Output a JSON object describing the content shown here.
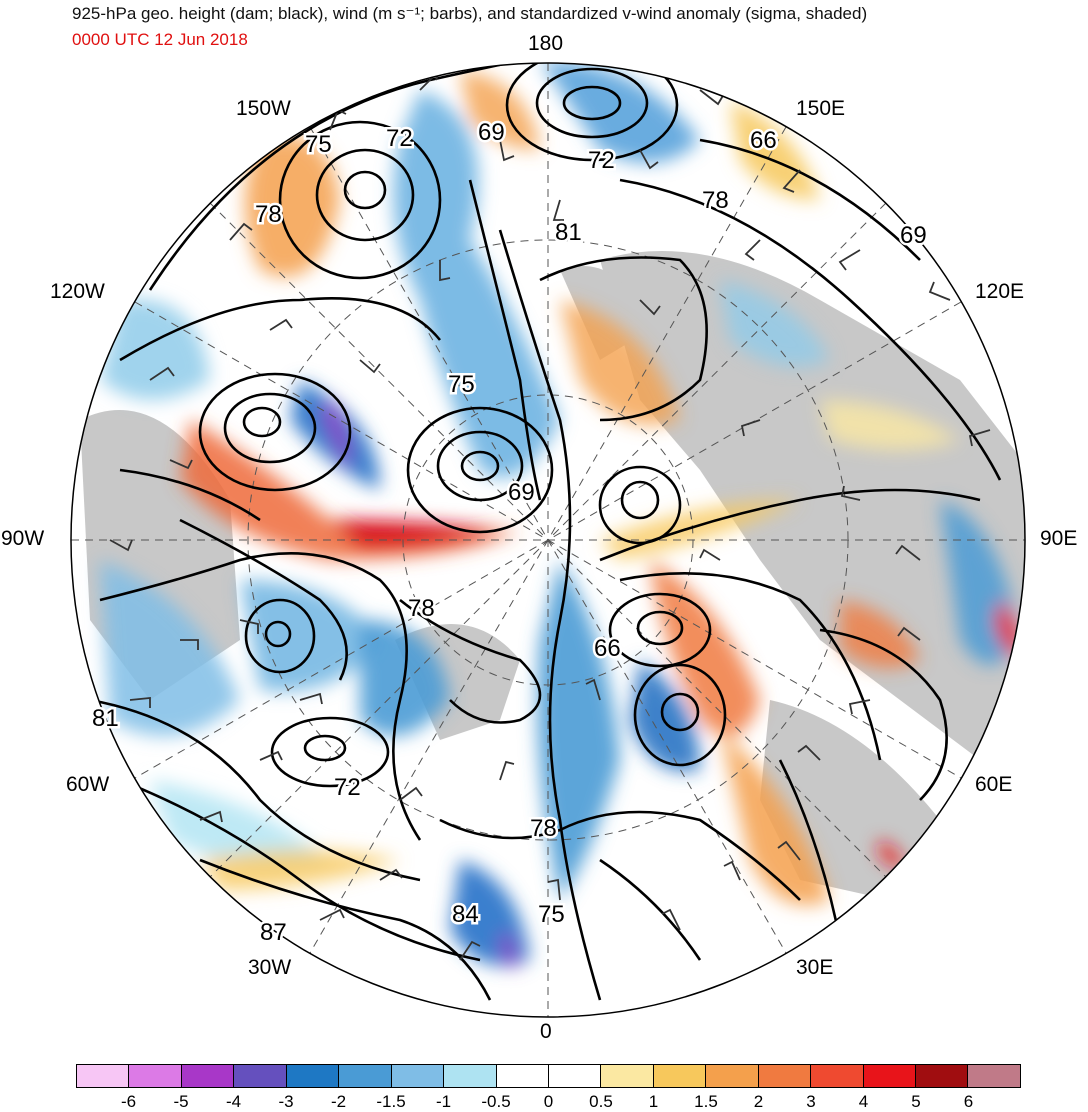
{
  "title": "925-hPa geo. height (dam; black), wind (m s⁻¹; barbs), and standardized v-wind anomaly (sigma, shaded)",
  "valid_time": "0000 UTC 12 Jun 2018",
  "longitude_labels": {
    "top": "180",
    "bottom": "0",
    "left": "90W",
    "right": "90E",
    "upper_left_150": "150W",
    "upper_right_150": "150E",
    "left_120": "120W",
    "right_120": "120E",
    "left_60": "60W",
    "right_60": "60E",
    "lower_left_30": "30W",
    "lower_right_30": "30E"
  },
  "contour_labels": [
    {
      "id": "c69a",
      "text": "69"
    },
    {
      "id": "c72a",
      "text": "72"
    },
    {
      "id": "c66a",
      "text": "66"
    },
    {
      "id": "c78a",
      "text": "78"
    },
    {
      "id": "c75a",
      "text": "75"
    },
    {
      "id": "c72b",
      "text": "72"
    },
    {
      "id": "c78b",
      "text": "78"
    },
    {
      "id": "c81a",
      "text": "81"
    },
    {
      "id": "c69b",
      "text": "69"
    },
    {
      "id": "c75b",
      "text": "75"
    },
    {
      "id": "c69c",
      "text": "69"
    },
    {
      "id": "c78c",
      "text": "78"
    },
    {
      "id": "c66b",
      "text": "66"
    },
    {
      "id": "c81b",
      "text": "81"
    },
    {
      "id": "c72c",
      "text": "72"
    },
    {
      "id": "c78d",
      "text": "78"
    },
    {
      "id": "c84",
      "text": "84"
    },
    {
      "id": "c75c",
      "text": "75"
    },
    {
      "id": "c87",
      "text": "87"
    }
  ],
  "colorbar": {
    "colors": [
      "#f7c6f5",
      "#dc7ae6",
      "#a837c8",
      "#6550be",
      "#1e78c4",
      "#4a9bd5",
      "#7fbde6",
      "#aee3f2",
      "#ffffff",
      "#ffffff",
      "#fbe8a2",
      "#f7c85c",
      "#f4a04c",
      "#f07a40",
      "#ef4a30",
      "#e8141a",
      "#a00d10",
      "#c07a88"
    ],
    "tick_labels": [
      "-6",
      "-5",
      "-4",
      "-3",
      "-2",
      "-1.5",
      "-1",
      "-0.5",
      "0",
      "0.5",
      "1",
      "1.5",
      "2",
      "3",
      "4",
      "5",
      "6"
    ]
  }
}
